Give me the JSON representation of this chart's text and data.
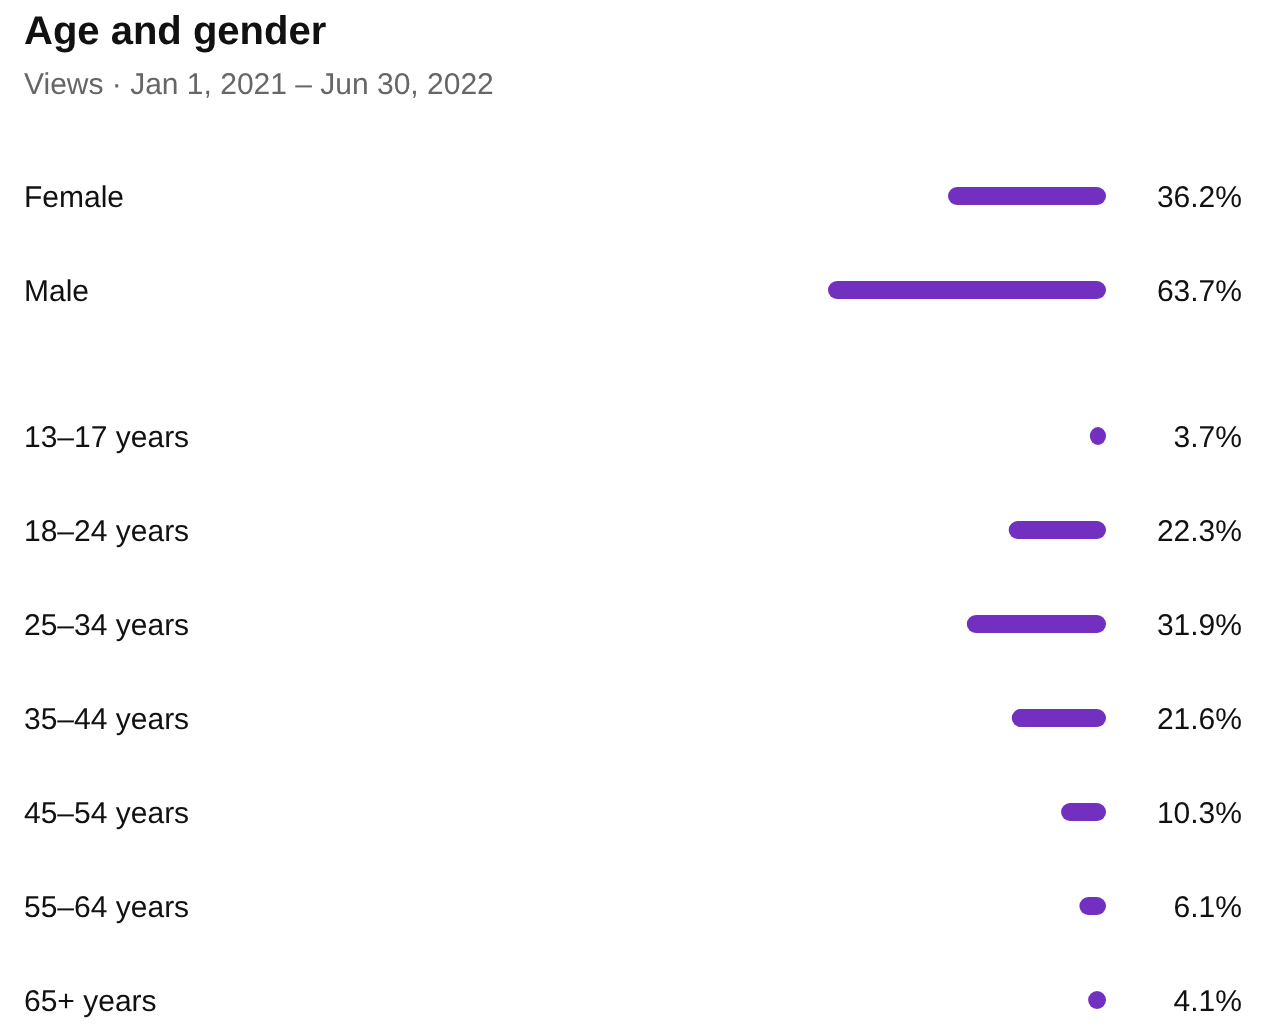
{
  "chart_data": [
    {
      "type": "bar",
      "orientation": "horizontal",
      "title": "Age and gender",
      "subtitle": "Views · Jan 1, 2021 – Jun 30, 2022",
      "categories": [
        "Female",
        "Male"
      ],
      "values": [
        36.2,
        63.7
      ],
      "value_labels": [
        "36.2%",
        "63.7%"
      ],
      "color": "#7330c0",
      "grid": false
    },
    {
      "type": "bar",
      "orientation": "horizontal",
      "categories": [
        "13–17 years",
        "18–24 years",
        "25–34 years",
        "35–44 years",
        "45–54 years",
        "55–64 years",
        "65+ years"
      ],
      "values": [
        3.7,
        22.3,
        31.9,
        21.6,
        10.3,
        6.1,
        4.1
      ],
      "value_labels": [
        "3.7%",
        "22.3%",
        "31.9%",
        "21.6%",
        "10.3%",
        "6.1%",
        "4.1%"
      ],
      "color": "#7330c0",
      "grid": false
    }
  ]
}
